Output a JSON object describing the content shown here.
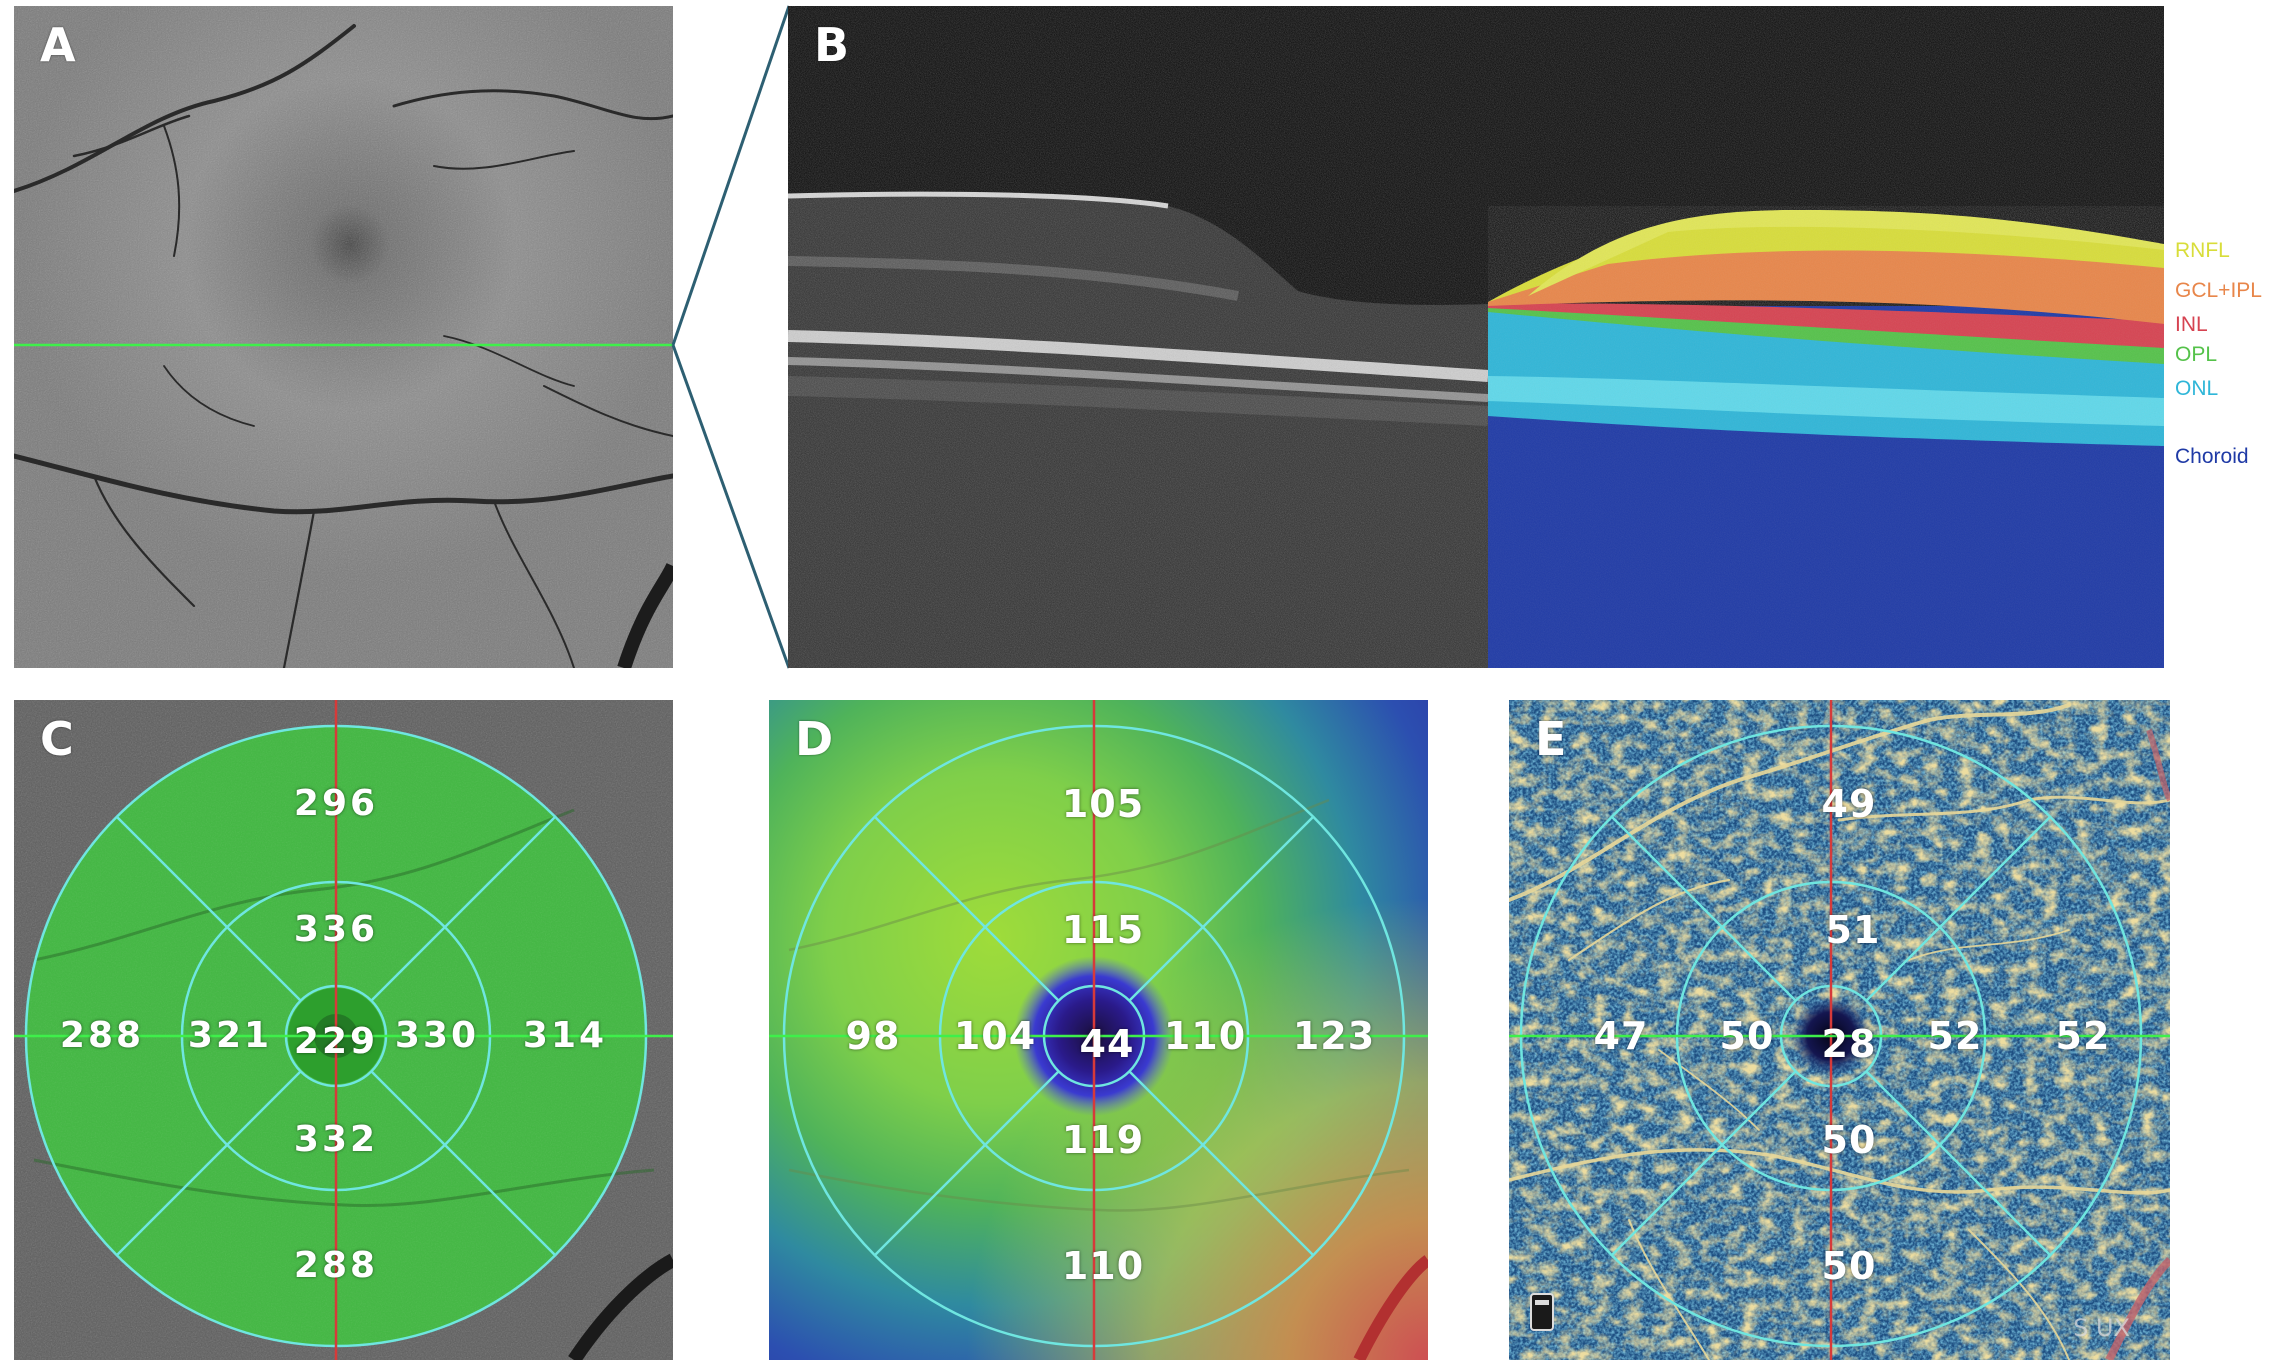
{
  "panels": [
    {
      "id": "A",
      "label": "A"
    },
    {
      "id": "B",
      "label": "B"
    },
    {
      "id": "C",
      "label": "C"
    },
    {
      "id": "D",
      "label": "D"
    },
    {
      "id": "E",
      "label": "E"
    }
  ],
  "oct_layers": [
    {
      "name": "RNFL",
      "color": "#d8dd3a"
    },
    {
      "name": "GCL+IPL",
      "color": "#e8864a"
    },
    {
      "name": "INL",
      "color": "#d64351"
    },
    {
      "name": "OPL",
      "color": "#55c24a"
    },
    {
      "name": "ONL",
      "color": "#2fb6d8"
    },
    {
      "name": "Choroid",
      "color": "#1f3aa6"
    }
  ],
  "panel_c_values": {
    "superior_outer": "296",
    "superior_inner": "336",
    "temporal_outer": "288",
    "temporal_inner": "321",
    "center": "229",
    "nasal_inner": "330",
    "nasal_outer": "314",
    "inferior_inner": "332",
    "inferior_outer": "288"
  },
  "panel_d_values": {
    "superior_outer": "105",
    "superior_inner": "115",
    "temporal_outer": "98",
    "temporal_inner": "104",
    "center": "44",
    "nasal_inner": "110",
    "nasal_outer": "123",
    "inferior_inner": "119",
    "inferior_outer": "110"
  },
  "panel_e_values": {
    "superior_outer": "49",
    "superior_inner": "51",
    "temporal_outer": "47",
    "temporal_inner": "50",
    "center": "28",
    "nasal_inner": "52",
    "nasal_outer": "52",
    "inferior_inner": "50",
    "inferior_outer": "50"
  },
  "device_watermark": "S  UX",
  "colors": {
    "scan_line": "#3ef04a",
    "grid_circle": "#6fe6e0",
    "vertical_axis": "#d63a3a",
    "zoom_lines": "#2d5f72"
  }
}
